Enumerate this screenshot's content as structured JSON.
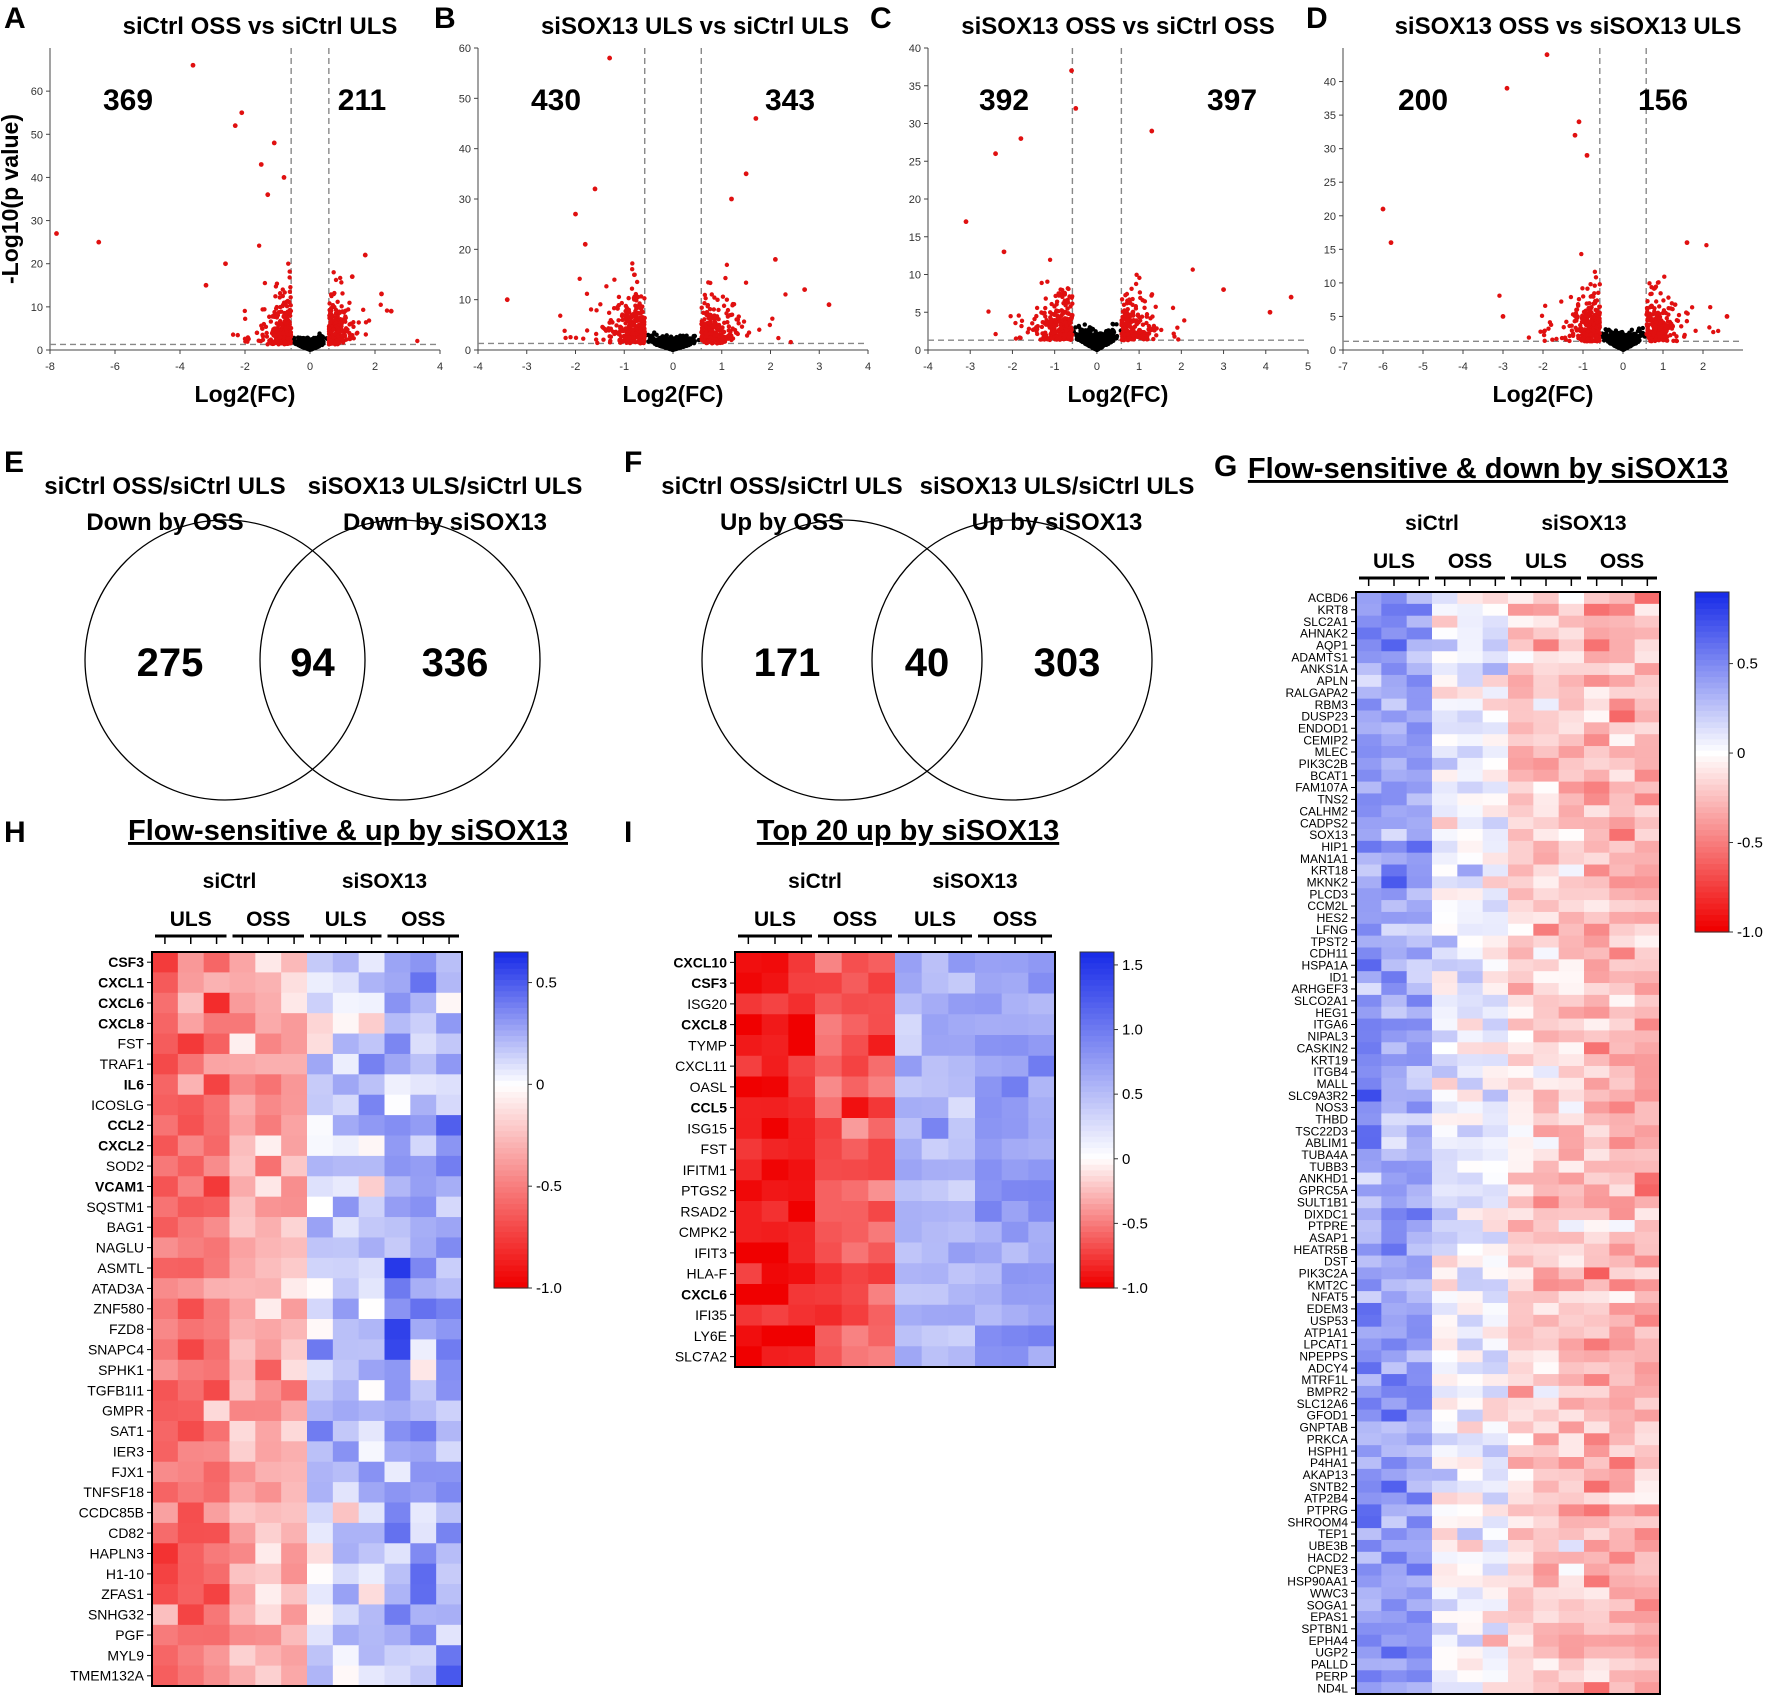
{
  "colors": {
    "up": "#f00000",
    "down": "#1a2de8",
    "neutral": "#ffffff",
    "ns": "#000000",
    "sig": "#e01010",
    "threshold": "#888888"
  },
  "volcano_common": {
    "ylabel": "-Log10(p value)",
    "xlabel": "Log2(FC)"
  },
  "venn_common": {},
  "heat_common": {
    "group_siCtrl": "siCtrl",
    "group_siSOX13": "siSOX13",
    "uls": "ULS",
    "oss": "OSS"
  },
  "chart_data": [
    {
      "panel": "A",
      "type": "scatter",
      "title": "siCtrl OSS vs siCtrl ULS",
      "xlabel": "Log2(FC)",
      "ylabel": "-Log10(p value)",
      "xlim": [
        -8,
        4
      ],
      "ylim": [
        0,
        70
      ],
      "xticks": [
        -8,
        -6,
        -4,
        -2,
        0,
        2,
        4
      ],
      "yticks": [
        0,
        10,
        20,
        30,
        40,
        50,
        60
      ],
      "fc_threshold": 0.58,
      "p_threshold": 1.3,
      "down_count": "369",
      "up_count": "211",
      "highlight_points": [
        [
          -7.8,
          27
        ],
        [
          -6.5,
          25
        ],
        [
          -3.6,
          66
        ],
        [
          -2.1,
          55
        ],
        [
          -2.3,
          52
        ],
        [
          -1.1,
          48
        ],
        [
          -1.5,
          43
        ],
        [
          -2.6,
          20
        ],
        [
          -3.2,
          15
        ],
        [
          1.7,
          22
        ],
        [
          2.2,
          13
        ],
        [
          2.5,
          9
        ],
        [
          1.3,
          17
        ],
        [
          -0.8,
          40
        ],
        [
          -1.3,
          36
        ]
      ]
    },
    {
      "panel": "B",
      "type": "scatter",
      "title": "siSOX13 ULS vs siCtrl ULS",
      "xlabel": "Log2(FC)",
      "ylabel": "",
      "xlim": [
        -4,
        4
      ],
      "ylim": [
        0,
        60
      ],
      "xticks": [
        -4,
        -3,
        -2,
        -1,
        0,
        1,
        2,
        3,
        4
      ],
      "yticks": [
        0,
        10,
        20,
        30,
        40,
        50,
        60
      ],
      "fc_threshold": 0.58,
      "p_threshold": 1.3,
      "down_count": "430",
      "up_count": "343",
      "highlight_points": [
        [
          -3.4,
          10
        ],
        [
          -1.3,
          58
        ],
        [
          1.7,
          46
        ],
        [
          -1.6,
          32
        ],
        [
          -2.0,
          27
        ],
        [
          1.2,
          30
        ],
        [
          1.5,
          35
        ],
        [
          -1.8,
          21
        ],
        [
          2.1,
          18
        ],
        [
          3.2,
          9
        ],
        [
          2.7,
          12
        ]
      ]
    },
    {
      "panel": "C",
      "type": "scatter",
      "title": "siSOX13 OSS vs siCtrl OSS",
      "xlabel": "Log2(FC)",
      "ylabel": "",
      "xlim": [
        -4,
        5
      ],
      "ylim": [
        0,
        40
      ],
      "xticks": [
        -4,
        -3,
        -2,
        -1,
        0,
        1,
        2,
        3,
        4,
        5
      ],
      "yticks": [
        0,
        5,
        10,
        15,
        20,
        25,
        30,
        35,
        40
      ],
      "fc_threshold": 0.58,
      "p_threshold": 1.3,
      "down_count": "392",
      "up_count": "397",
      "highlight_points": [
        [
          -3.1,
          17
        ],
        [
          -2.4,
          26
        ],
        [
          -1.8,
          28
        ],
        [
          -0.6,
          37
        ],
        [
          -0.5,
          32
        ],
        [
          1.3,
          29
        ],
        [
          4.6,
          7
        ],
        [
          4.1,
          5
        ],
        [
          3.0,
          8
        ],
        [
          -2.2,
          13
        ]
      ]
    },
    {
      "panel": "D",
      "type": "scatter",
      "title": "siSOX13 OSS vs siSOX13 ULS",
      "xlabel": "Log2(FC)",
      "ylabel": "",
      "xlim": [
        -7,
        3
      ],
      "ylim": [
        0,
        45
      ],
      "xticks": [
        -7,
        -6,
        -5,
        -4,
        -3,
        -2,
        -1,
        0,
        1,
        2
      ],
      "yticks": [
        0,
        5,
        10,
        15,
        20,
        25,
        30,
        35,
        40
      ],
      "fc_threshold": 0.58,
      "p_threshold": 1.3,
      "down_count": "200",
      "up_count": "156",
      "highlight_points": [
        [
          -6.0,
          21
        ],
        [
          -5.8,
          16
        ],
        [
          -3.0,
          5
        ],
        [
          -2.9,
          39
        ],
        [
          -1.9,
          44
        ],
        [
          -1.1,
          34
        ],
        [
          -1.2,
          32
        ],
        [
          -0.9,
          29
        ],
        [
          1.6,
          16
        ],
        [
          2.6,
          5
        ]
      ]
    },
    {
      "panel": "E",
      "type": "venn",
      "left_title": "siCtrl OSS/siCtrl ULS",
      "left_subtitle": "Down by OSS",
      "right_title": "siSOX13 ULS/siCtrl ULS",
      "right_subtitle": "Down by siSOX13",
      "left_only": "275",
      "overlap": "94",
      "right_only": "336"
    },
    {
      "panel": "F",
      "type": "venn",
      "left_title": "siCtrl OSS/siCtrl ULS",
      "left_subtitle": "Up by OSS",
      "right_title": "siSOX13 ULS/siCtrl ULS",
      "right_subtitle": "Up by siSOX13",
      "left_only": "171",
      "overlap": "40",
      "right_only": "303"
    },
    {
      "panel": "G",
      "type": "heatmap",
      "title": "Flow-sensitive & down by siSOX13",
      "columns_per_group": 3,
      "groups": [
        "siCtrl ULS",
        "siCtrl OSS",
        "siSOX13 ULS",
        "siSOX13 OSS"
      ],
      "scale": [
        -1.0,
        0.9
      ],
      "scale_ticks": [
        "0.5",
        "0",
        "-0.5",
        "-1.0"
      ],
      "scale_tick_values": [
        0.5,
        0,
        -0.5,
        -1.0
      ],
      "group_means": [
        0.42,
        0.05,
        -0.2,
        -0.28
      ],
      "rows": [
        "ACBD6",
        "KRT8",
        "SLC2A1",
        "AHNAK2",
        "AQP1",
        "ADAMTS1",
        "ANKS1A",
        "APLN",
        "RALGAPA2",
        "RBM3",
        "DUSP23",
        "ENDOD1",
        "CEMIP2",
        "MLEC",
        "PIK3C2B",
        "BCAT1",
        "FAM107A",
        "TNS2",
        "CALHM2",
        "CADPS2",
        "SOX13",
        "HIP1",
        "MAN1A1",
        "KRT18",
        "MKNK2",
        "PLCD3",
        "CCM2L",
        "HES2",
        "LFNG",
        "TPST2",
        "CDH11",
        "HSPA1A",
        "ID1",
        "ARHGEF3",
        "SLCO2A1",
        "HEG1",
        "ITGA6",
        "NIPAL3",
        "CASKIN2",
        "KRT19",
        "ITGB4",
        "MALL",
        "SLC9A3R2",
        "NOS3",
        "THBD",
        "TSC22D3",
        "ABLIM1",
        "TUBA4A",
        "TUBB3",
        "ANKHD1",
        "GPRC5A",
        "SULT1B1",
        "DIXDC1",
        "PTPRE",
        "ASAP1",
        "HEATR5B",
        "DST",
        "PIK3C2A",
        "KMT2C",
        "NFAT5",
        "EDEM3",
        "USP53",
        "ATP1A1",
        "LPCAT1",
        "NPEPPS",
        "ADCY4",
        "MTRF1L",
        "BMPR2",
        "SLC12A6",
        "GFOD1",
        "GNPTAB",
        "PRKCA",
        "HSPH1",
        "P4HA1",
        "AKAP13",
        "SNTB2",
        "ATP2B4",
        "PTPRG",
        "SHROOM4",
        "TEP1",
        "UBE3B",
        "HACD2",
        "CPNE3",
        "HSP90AA1",
        "WWC3",
        "SOGA1",
        "EPAS1",
        "SPTBN1",
        "EPHA4",
        "UGP2",
        "PALLD",
        "PERP",
        "ND4L"
      ],
      "bold_rows": []
    },
    {
      "panel": "H",
      "type": "heatmap",
      "title": "Flow-sensitive & up by siSOX13",
      "columns_per_group": 3,
      "groups": [
        "siCtrl ULS",
        "siCtrl OSS",
        "siSOX13 ULS",
        "siSOX13 OSS"
      ],
      "scale": [
        -1.0,
        0.65
      ],
      "scale_ticks": [
        "0.5",
        "0",
        "-0.5",
        "-1.0"
      ],
      "scale_tick_values": [
        0.5,
        0,
        -0.5,
        -1.0
      ],
      "group_means": [
        -0.55,
        -0.3,
        0.15,
        0.25
      ],
      "rows": [
        "CSF3",
        "CXCL1",
        "CXCL6",
        "CXCL8",
        "FST",
        "TRAF1",
        "IL6",
        "ICOSLG",
        "CCL2",
        "CXCL2",
        "SOD2",
        "VCAM1",
        "SQSTM1",
        "BAG1",
        "NAGLU",
        "ASMTL",
        "ATAD3A",
        "ZNF580",
        "FZD8",
        "SNAPC4",
        "SPHK1",
        "TGFB1I1",
        "GMPR",
        "SAT1",
        "IER3",
        "FJX1",
        "TNFSF18",
        "CCDC85B",
        "CD82",
        "HAPLN3",
        "H1-10",
        "ZFAS1",
        "SNHG32",
        "PGF",
        "MYL9",
        "TMEM132A"
      ],
      "bold_rows": [
        "CSF3",
        "CXCL1",
        "CXCL6",
        "CXCL8",
        "IL6",
        "CCL2",
        "CXCL2",
        "VCAM1"
      ]
    },
    {
      "panel": "I",
      "type": "heatmap",
      "title": "Top 20 up by siSOX13",
      "columns_per_group": 3,
      "groups": [
        "siCtrl ULS",
        "siCtrl OSS",
        "siSOX13 ULS",
        "siSOX13 OSS"
      ],
      "scale": [
        -1.0,
        1.6
      ],
      "scale_ticks": [
        "1.5",
        "1.0",
        "0.5",
        "0",
        "-0.5",
        "-1.0"
      ],
      "scale_tick_values": [
        1.5,
        1.0,
        0.5,
        0,
        -0.5,
        -1.0
      ],
      "group_means": [
        -0.9,
        -0.65,
        0.55,
        0.75
      ],
      "rows": [
        "CXCL10",
        "CSF3",
        "ISG20",
        "CXCL8",
        "TYMP",
        "CXCL11",
        "OASL",
        "CCL5",
        "ISG15",
        "FST",
        "IFITM1",
        "PTGS2",
        "RSAD2",
        "CMPK2",
        "IFIT3",
        "HLA-F",
        "CXCL6",
        "IFI35",
        "LY6E",
        "SLC7A2"
      ],
      "bold_rows": [
        "CXCL10",
        "CSF3",
        "CXCL8",
        "CCL5",
        "CXCL6"
      ]
    }
  ]
}
